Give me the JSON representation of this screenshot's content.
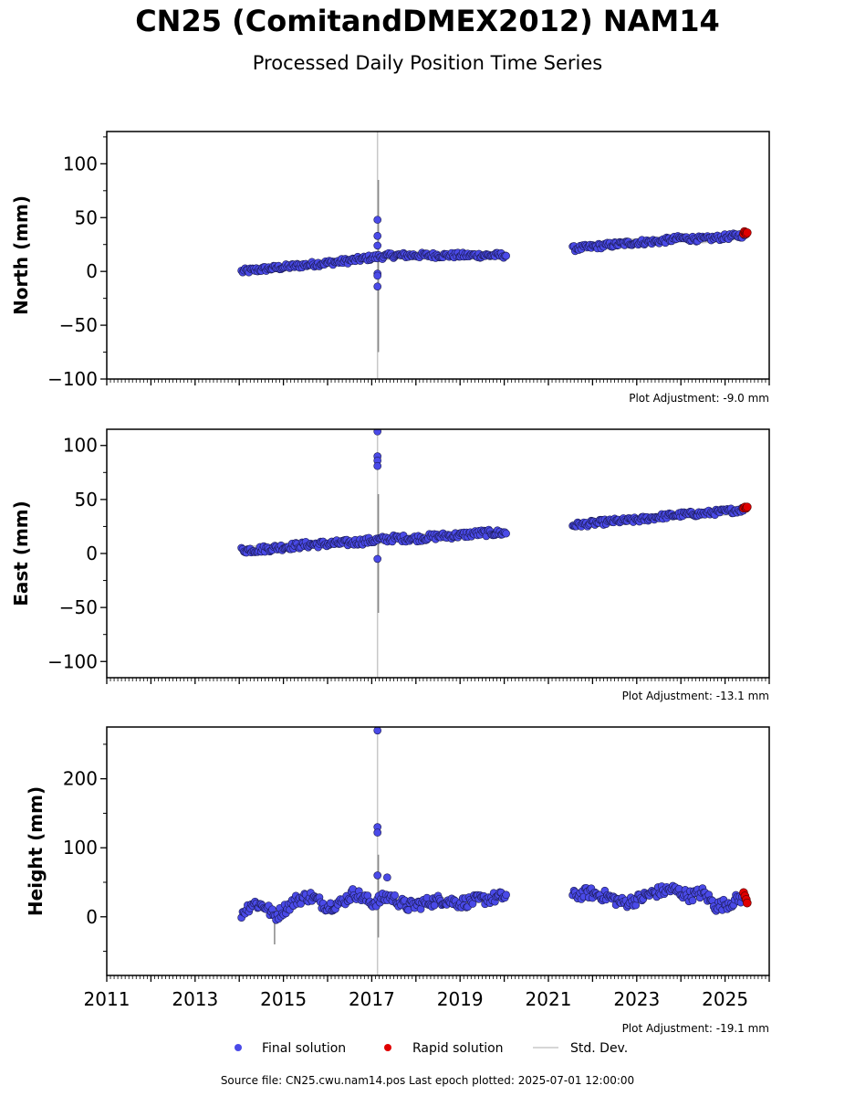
{
  "title": "CN25 (ComitandDMEX2012) NAM14",
  "subtitle": "Processed Daily Position Time Series",
  "source_line": "Source file: CN25.cwu.nam14.pos  Last epoch plotted: 2025-07-01 12:00:00",
  "legend": {
    "final_label": "Final solution",
    "rapid_label": "Rapid solution",
    "std_label": "Std. Dev."
  },
  "colors": {
    "final": "#4a4ae8",
    "rapid": "#e00000",
    "std": "#c8c8c8"
  },
  "chart_data": [
    {
      "type": "scatter",
      "ylabel": "North (mm)",
      "xlim": [
        2011,
        2026
      ],
      "ylim": [
        -100,
        130
      ],
      "yticks": [
        -100,
        -50,
        0,
        50,
        100
      ],
      "adjustment": "Plot Adjustment: -9.0 mm",
      "show_x_labels": false,
      "segments": [
        {
          "x": [
            2014.05,
            2014.5,
            2015.0,
            2015.5,
            2016.0,
            2016.5,
            2017.0,
            2017.5,
            2018.0,
            2018.5,
            2019.0,
            2019.5,
            2020.05
          ],
          "y": [
            0,
            2,
            4,
            6,
            8,
            10,
            13,
            15,
            15,
            15,
            15,
            15,
            15
          ],
          "noise": 2.5
        },
        {
          "x": [
            2021.55,
            2022.0,
            2022.5,
            2023.0,
            2023.5,
            2024.0,
            2024.5,
            2025.0,
            2025.45
          ],
          "y": [
            21,
            23,
            25,
            27,
            28,
            31,
            30,
            32,
            34
          ],
          "noise": 2.5
        }
      ],
      "outliers": {
        "x": [
          2017.13,
          2017.13,
          2017.13,
          2017.13,
          2017.13,
          2017.13
        ],
        "y": [
          48,
          33,
          24,
          -2,
          -4,
          -14
        ]
      },
      "std_spikes": {
        "x": [
          2017.13,
          2017.15
        ],
        "low": [
          -100,
          -75
        ],
        "high": [
          130,
          85
        ]
      },
      "rapid": {
        "x": [
          2025.42,
          2025.44,
          2025.46,
          2025.48,
          2025.5
        ],
        "y": [
          35,
          37,
          36,
          35,
          36
        ]
      }
    },
    {
      "type": "scatter",
      "ylabel": "East (mm)",
      "xlim": [
        2011,
        2026
      ],
      "ylim": [
        -115,
        115
      ],
      "yticks": [
        -100,
        -50,
        0,
        50,
        100
      ],
      "adjustment": "Plot Adjustment: -13.1 mm",
      "show_x_labels": false,
      "segments": [
        {
          "x": [
            2014.05,
            2014.5,
            2015.0,
            2015.5,
            2016.0,
            2016.5,
            2017.0,
            2017.5,
            2018.0,
            2018.5,
            2019.0,
            2019.5,
            2020.05
          ],
          "y": [
            3,
            4,
            6,
            8,
            9,
            10,
            12,
            14,
            14,
            16,
            17,
            19,
            19
          ],
          "noise": 3
        },
        {
          "x": [
            2021.55,
            2022.0,
            2022.5,
            2023.0,
            2023.5,
            2024.0,
            2024.5,
            2025.0,
            2025.45
          ],
          "y": [
            26,
            28,
            30,
            31,
            34,
            36,
            37,
            39,
            41
          ],
          "noise": 2.5
        }
      ],
      "outliers": {
        "x": [
          2017.13,
          2017.13,
          2017.13,
          2017.13,
          2017.13
        ],
        "y": [
          113,
          90,
          86,
          81,
          -5
        ]
      },
      "std_spikes": {
        "x": [
          2017.13,
          2017.15
        ],
        "low": [
          -115,
          -55
        ],
        "high": [
          115,
          55
        ]
      },
      "rapid": {
        "x": [
          2025.42,
          2025.45,
          2025.48,
          2025.5
        ],
        "y": [
          42,
          43,
          42,
          43
        ]
      }
    },
    {
      "type": "scatter",
      "ylabel": "Height (mm)",
      "xlim": [
        2011,
        2026
      ],
      "ylim": [
        -85,
        275
      ],
      "yticks": [
        0,
        100,
        200
      ],
      "adjustment": "Plot Adjustment: -19.1 mm",
      "show_x_labels": true,
      "xticks": [
        2011,
        2013,
        2015,
        2017,
        2019,
        2021,
        2023,
        2025
      ],
      "segments": [
        {
          "x": [
            2014.05,
            2014.3,
            2014.6,
            2014.8,
            2015.0,
            2015.3,
            2015.6,
            2016.0,
            2016.3,
            2016.6,
            2017.0,
            2017.4,
            2017.8,
            2018.2,
            2018.6,
            2019.0,
            2019.5,
            2020.05
          ],
          "y": [
            5,
            20,
            15,
            0,
            10,
            25,
            30,
            15,
            20,
            35,
            20,
            30,
            15,
            20,
            25,
            20,
            25,
            30
          ],
          "noise": 8
        },
        {
          "x": [
            2021.55,
            2021.9,
            2022.3,
            2022.7,
            2023.0,
            2023.4,
            2023.8,
            2024.2,
            2024.5,
            2024.8,
            2025.1,
            2025.45
          ],
          "y": [
            30,
            35,
            30,
            20,
            25,
            35,
            40,
            30,
            35,
            15,
            20,
            30
          ],
          "noise": 8
        }
      ],
      "outliers": {
        "x": [
          2017.13,
          2017.13,
          2017.13,
          2017.13,
          2017.35
        ],
        "y": [
          270,
          130,
          122,
          60,
          57
        ]
      },
      "std_spikes": {
        "x": [
          2017.13,
          2017.15,
          2014.8
        ],
        "low": [
          -85,
          -30,
          -40
        ],
        "high": [
          275,
          90,
          10
        ]
      },
      "rapid": {
        "x": [
          2025.42,
          2025.45,
          2025.48,
          2025.5
        ],
        "y": [
          35,
          30,
          25,
          20
        ]
      }
    }
  ]
}
